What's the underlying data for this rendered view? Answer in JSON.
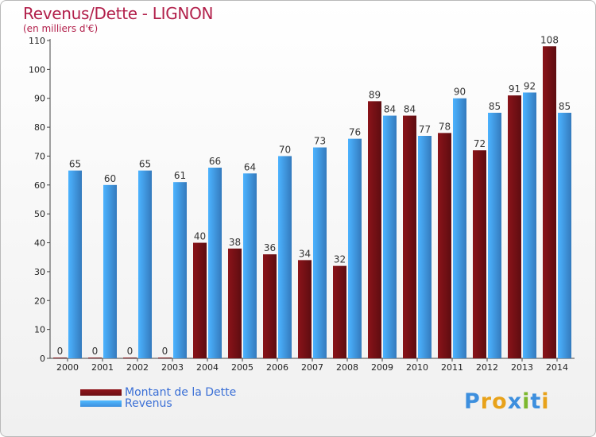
{
  "header": {
    "title": "Revenus/Dette - LIGNON",
    "subtitle": "(en milliers d'€)"
  },
  "legend": {
    "items": [
      {
        "label": "Montant de la Dette",
        "color": "#6e0f14"
      },
      {
        "label": "Revenus",
        "color": "#3d8fde"
      }
    ]
  },
  "logo": {
    "text": "Proxiti",
    "colors": [
      "#3d8fde",
      "#e8a21a",
      "#e8a21a",
      "#3d8fde",
      "#7cb82f",
      "#3d8fde",
      "#e8a21a"
    ]
  },
  "chart_data": {
    "type": "bar",
    "title": "Revenus/Dette - LIGNON",
    "subtitle": "(en milliers d'€)",
    "categories": [
      "2000",
      "2001",
      "2002",
      "2003",
      "2004",
      "2005",
      "2006",
      "2007",
      "2008",
      "2009",
      "2010",
      "2011",
      "2012",
      "2013",
      "2014"
    ],
    "series": [
      {
        "name": "Montant de la Dette",
        "color": "#6e0f14",
        "values": [
          0,
          0,
          0,
          0,
          40,
          38,
          36,
          34,
          32,
          89,
          84,
          78,
          72,
          91,
          108
        ]
      },
      {
        "name": "Revenus",
        "color": "#3d8fde",
        "values": [
          65,
          60,
          65,
          61,
          66,
          64,
          70,
          73,
          76,
          84,
          77,
          90,
          85,
          92,
          85
        ]
      }
    ],
    "ylim": [
      0,
      110
    ],
    "yticks": [
      0,
      10,
      20,
      30,
      40,
      50,
      60,
      70,
      80,
      90,
      100,
      110
    ],
    "grid": false,
    "legend_position": "bottom-left"
  }
}
